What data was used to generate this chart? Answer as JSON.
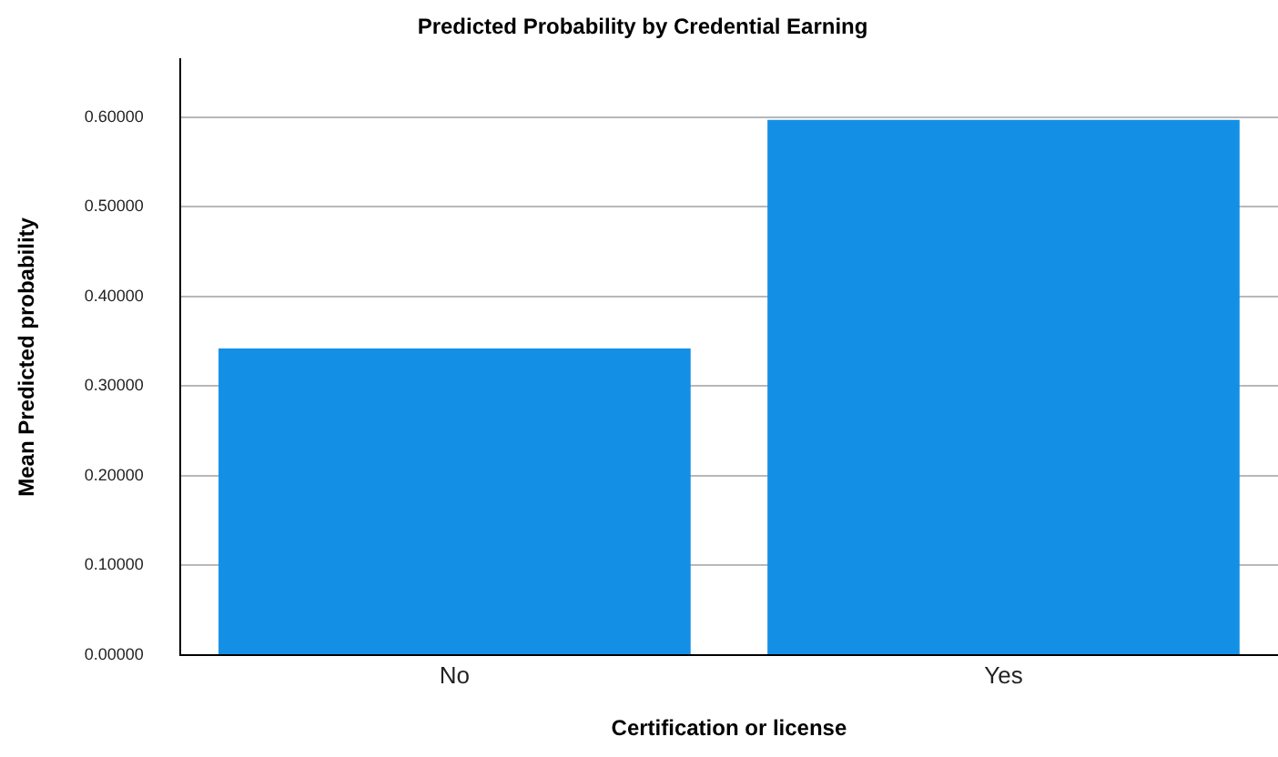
{
  "chart_data": {
    "type": "bar",
    "title": "Predicted Probability by Credential Earning",
    "xlabel": "Certification or license",
    "ylabel": "Mean Predicted probability",
    "categories": [
      "No",
      "Yes"
    ],
    "values": [
      0.342,
      0.597
    ],
    "color": "#1390e6",
    "ylim": [
      0,
      0.665
    ],
    "yticks": [
      {
        "value": 0,
        "label": "0.00000"
      },
      {
        "value": 0.1,
        "label": "0.10000"
      },
      {
        "value": 0.2,
        "label": "0.20000"
      },
      {
        "value": 0.3,
        "label": "0.30000"
      },
      {
        "value": 0.4,
        "label": "0.40000"
      },
      {
        "value": 0.5,
        "label": "0.50000"
      },
      {
        "value": 0.6,
        "label": "0.60000"
      }
    ],
    "grid": "y",
    "legend": false
  }
}
